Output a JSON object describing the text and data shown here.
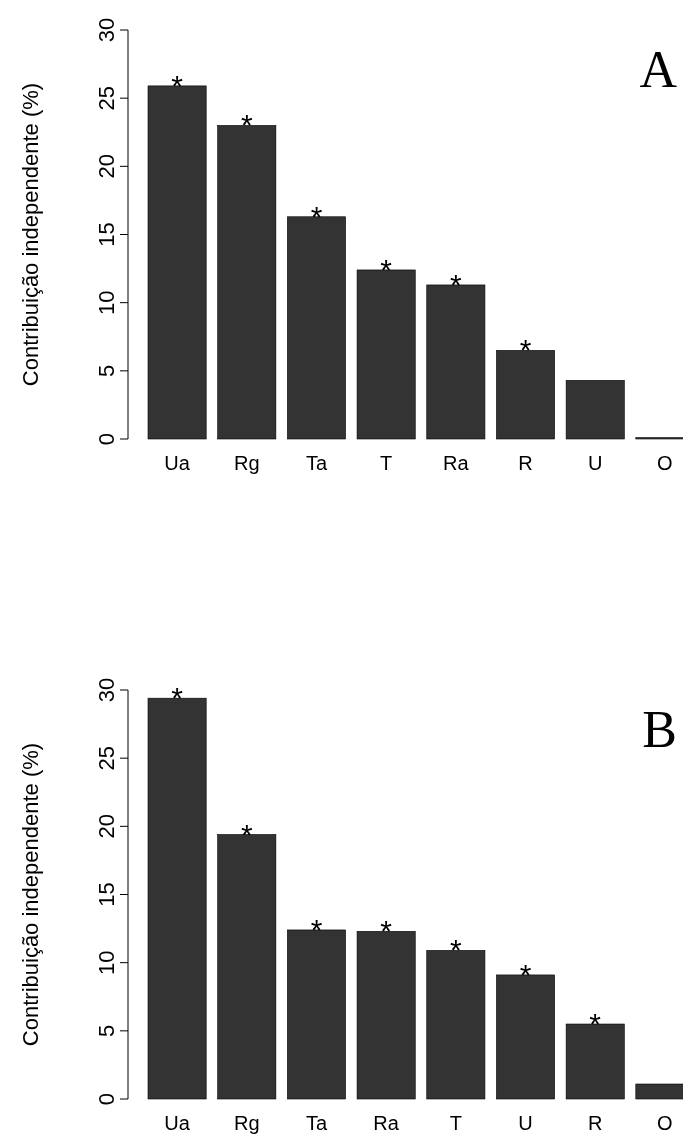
{
  "chart_data": [
    {
      "type": "bar",
      "title": "A",
      "ylabel": "Contribuição independente (%)",
      "categories": [
        "Ua",
        "Rg",
        "Ta",
        "T",
        "Ra",
        "R",
        "U",
        "O"
      ],
      "values": [
        25.9,
        23.0,
        16.3,
        12.4,
        11.3,
        6.5,
        4.3,
        0.1
      ],
      "color": "#333333",
      "ylim": [
        0,
        30
      ],
      "yticks": [
        0,
        5,
        10,
        15,
        20,
        25,
        30
      ],
      "grid": false,
      "annotations": [
        {
          "text": "*",
          "x": "Ua",
          "y": 25.9
        },
        {
          "text": "*",
          "x": "Rg",
          "y": 23.0
        },
        {
          "text": "*",
          "x": "Ta",
          "y": 16.3
        },
        {
          "text": "*",
          "x": "T",
          "y": 12.4
        },
        {
          "text": "*",
          "x": "Ra",
          "y": 11.3
        },
        {
          "text": "*",
          "x": "R",
          "y": 6.5
        }
      ]
    },
    {
      "type": "bar",
      "title": "B",
      "ylabel": "Contribuição independente (%)",
      "categories": [
        "Ua",
        "Rg",
        "Ta",
        "Ra",
        "T",
        "U",
        "R",
        "O"
      ],
      "values": [
        29.4,
        19.4,
        12.4,
        12.3,
        10.9,
        9.1,
        5.5,
        1.1
      ],
      "color": "#333333",
      "ylim": [
        0,
        30
      ],
      "yticks": [
        0,
        5,
        10,
        15,
        20,
        25,
        30
      ],
      "grid": false,
      "annotations": [
        {
          "text": "*",
          "x": "Ua",
          "y": 29.4
        },
        {
          "text": "*",
          "x": "Rg",
          "y": 19.4
        },
        {
          "text": "*",
          "x": "Ta",
          "y": 12.4
        },
        {
          "text": "*",
          "x": "Ra",
          "y": 12.3
        },
        {
          "text": "*",
          "x": "T",
          "y": 10.9
        },
        {
          "text": "*",
          "x": "U",
          "y": 9.1
        },
        {
          "text": "*",
          "x": "R",
          "y": 5.5
        }
      ]
    }
  ]
}
